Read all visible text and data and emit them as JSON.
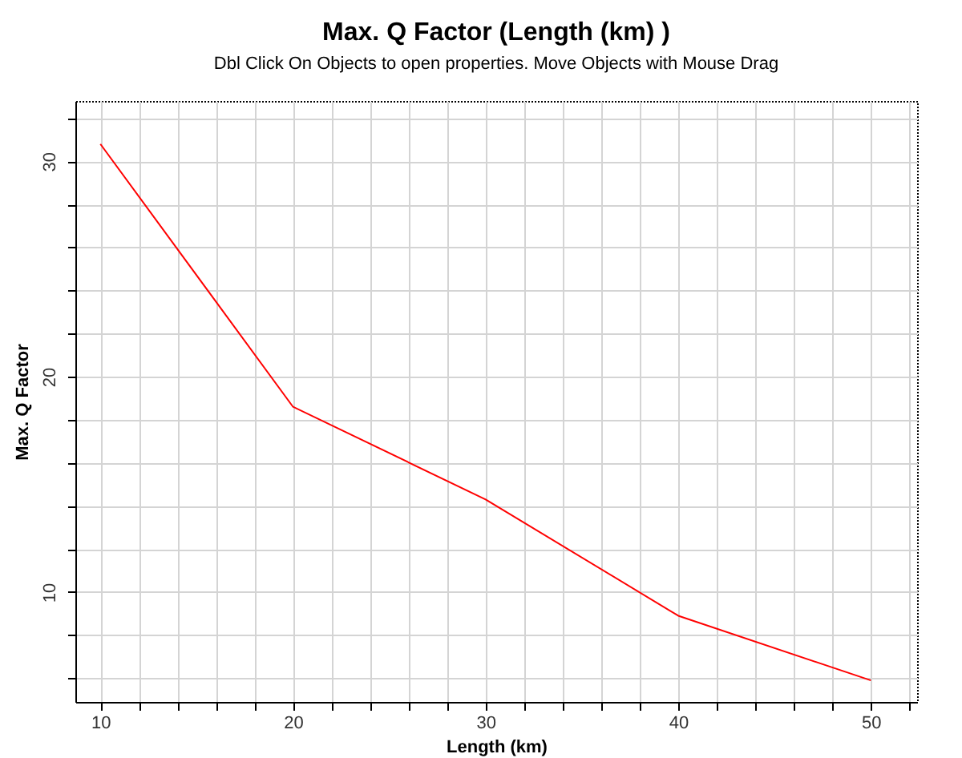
{
  "chart_data": {
    "type": "line",
    "title": "Max. Q Factor (Length (km) )",
    "subtitle": "Dbl Click On Objects to open properties.  Move Objects with Mouse Drag",
    "xlabel": "Length (km)",
    "ylabel": "Max. Q Factor",
    "x": [
      10,
      20,
      30,
      40,
      50
    ],
    "series": [
      {
        "color": "#ff0000",
        "values": [
          30.8,
          18.6,
          14.3,
          8.9,
          5.9
        ]
      }
    ],
    "xlim": [
      8.7,
      52.4
    ],
    "xticks": [
      10,
      {
        "value": 12,
        "label": null
      },
      {
        "value": 14,
        "label": null
      },
      {
        "value": 16,
        "label": null
      },
      {
        "value": 18,
        "label": null
      },
      20,
      {
        "value": 22,
        "label": null
      },
      {
        "value": 24,
        "label": null
      },
      {
        "value": 26,
        "label": null
      },
      {
        "value": 28,
        "label": null
      },
      30,
      {
        "value": 32,
        "label": null
      },
      {
        "value": 34,
        "label": null
      },
      {
        "value": 36,
        "label": null
      },
      {
        "value": 38,
        "label": null
      },
      40,
      {
        "value": 42,
        "label": null
      },
      {
        "value": 44,
        "label": null
      },
      {
        "value": 46,
        "label": null
      },
      {
        "value": 48,
        "label": null
      },
      50,
      {
        "value": 52,
        "label": null
      }
    ],
    "ylim": [
      4.9,
      32.8
    ],
    "yticks": [
      {
        "value": 6,
        "label": null
      },
      {
        "value": 8,
        "label": null
      },
      10,
      {
        "value": 12,
        "label": null
      },
      {
        "value": 14,
        "label": null
      },
      {
        "value": 16,
        "label": null
      },
      {
        "value": 18,
        "label": null
      },
      20,
      {
        "value": 22,
        "label": null
      },
      {
        "value": 24,
        "label": null
      },
      {
        "value": 26,
        "label": null
      },
      {
        "value": 28,
        "label": null
      },
      30,
      {
        "value": 32,
        "label": null
      }
    ],
    "grid": true,
    "legend": false,
    "marker": "none",
    "line_style": "solid"
  }
}
